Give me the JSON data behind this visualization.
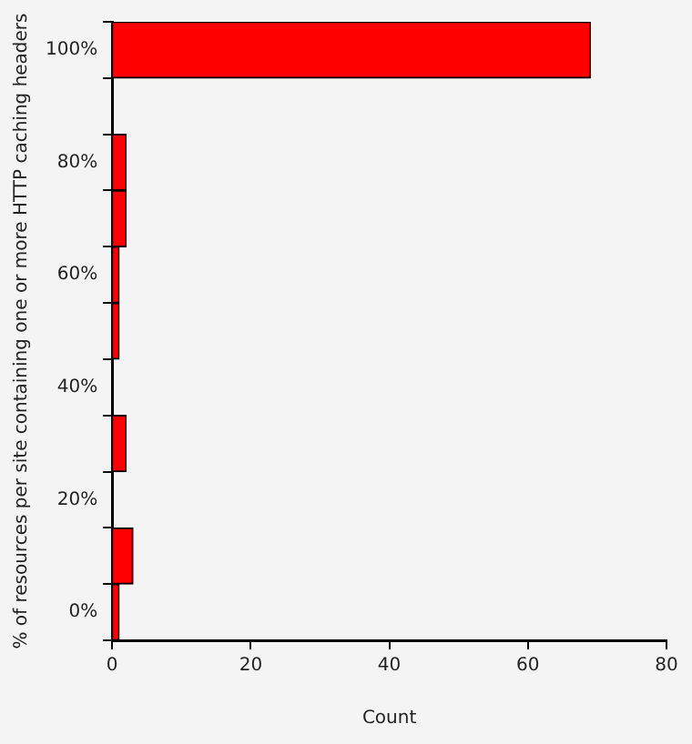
{
  "chart_data": {
    "type": "bar",
    "orientation": "horizontal",
    "xlabel": "Count",
    "ylabel": "% of resources per site containing one or more HTTP caching headers",
    "categories": [
      "100%",
      null,
      "80%",
      null,
      "60%",
      null,
      "40%",
      null,
      "20%",
      null,
      "0%"
    ],
    "values": [
      69,
      0,
      2,
      2,
      1,
      1,
      0,
      2,
      0,
      3,
      1
    ],
    "color": "#ff0000",
    "xlim": [
      0,
      80
    ],
    "xticks": [
      0,
      20,
      40,
      60,
      80
    ],
    "grid": false,
    "legend": false
  }
}
